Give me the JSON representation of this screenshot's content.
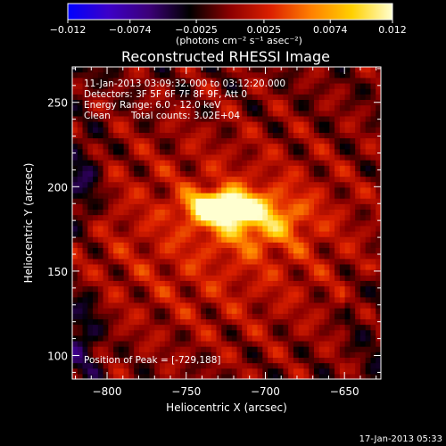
{
  "chart_data": {
    "type": "heatmap",
    "title": "Reconstructed RHESSI Image",
    "xlabel": "Heliocentric X (arcsec)",
    "ylabel": "Heliocentric Y (arcsec)",
    "xlim": [
      -822,
      -627
    ],
    "ylim": [
      86,
      271
    ],
    "x_ticks": [
      -800,
      -750,
      -700,
      -650
    ],
    "y_ticks": [
      100,
      150,
      200,
      250
    ],
    "x_tick_labels": [
      "−800",
      "−750",
      "−700",
      "−650"
    ],
    "y_tick_labels": [
      "100",
      "150",
      "200",
      "250"
    ],
    "colorbar": {
      "label": "(photons cm⁻² s⁻¹ asec⁻²)",
      "range": [
        -0.012,
        0.012
      ],
      "ticks": [
        -0.012,
        -0.0074,
        -0.0025,
        0.0025,
        0.0074,
        0.012
      ],
      "tick_labels": [
        "−0.012",
        "−0.0074",
        "−0.0025",
        "0.0025",
        "0.0074",
        "0.012"
      ],
      "colors": [
        "#0000ff",
        "#3c00c8",
        "#3c0078",
        "#000000",
        "#8c0000",
        "#dc2000",
        "#ff8000",
        "#ffd000",
        "#ffffd0"
      ]
    },
    "annotations": [
      "11-Jan-2013 03:09:32.000 to 03:12:20.000",
      "Detectors: 3F 5F 6F 7F 8F 9F, Att 0",
      "Energy Range: 6.0 - 12.0 keV",
      "Clean",
      "Total counts: 3.02E+04"
    ],
    "peak_label": "Position of Peak = [-729,188]",
    "peak": {
      "x": -729,
      "y": 188
    }
  },
  "footer": {
    "timestamp": "17-Jan-2013 05:33"
  }
}
